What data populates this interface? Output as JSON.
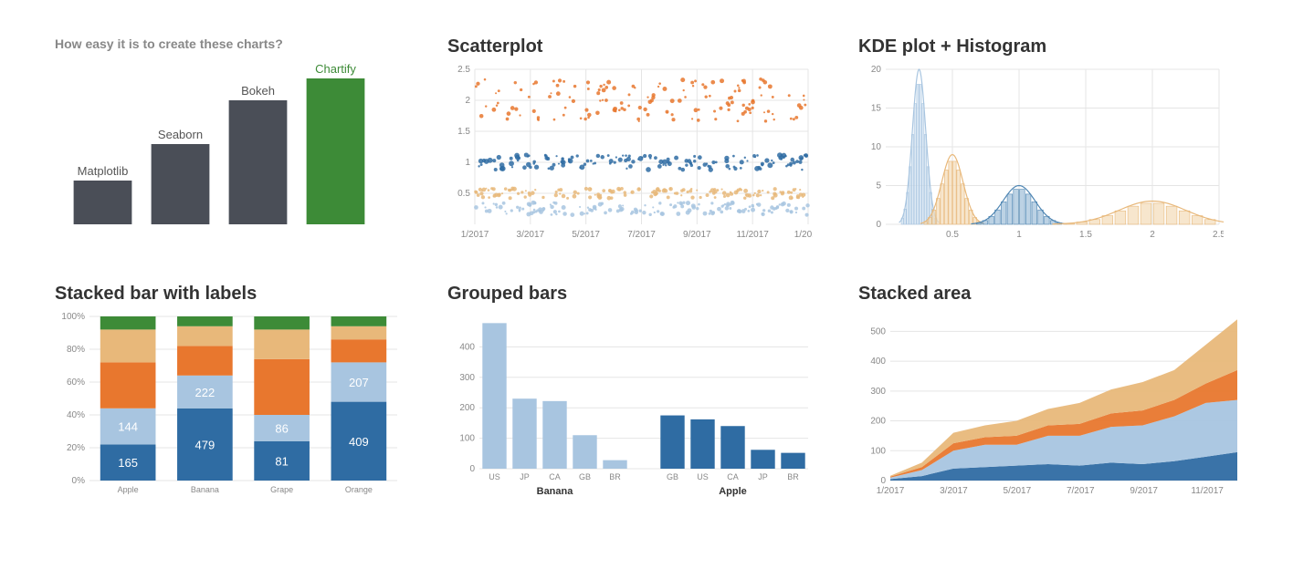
{
  "ease_chart": {
    "title": "How easy it is to create these charts?",
    "title_fontsize": 14,
    "title_color": "#888888",
    "type": "bar",
    "bars": [
      {
        "label": "Matplotlib",
        "value": 30,
        "color": "#4a4e57",
        "label_color": "#555555"
      },
      {
        "label": "Seaborn",
        "value": 55,
        "color": "#4a4e57",
        "label_color": "#555555"
      },
      {
        "label": "Bokeh",
        "value": 85,
        "color": "#4a4e57",
        "label_color": "#555555"
      },
      {
        "label": "Chartify",
        "value": 100,
        "color": "#3d8b37",
        "label_color": "#3d8b37"
      }
    ],
    "bar_width": 0.75,
    "ymax": 100
  },
  "scatter": {
    "title": "Scatterplot",
    "title_fontsize": 20,
    "type": "scatter",
    "xlim": [
      "1/2017",
      "1/2018"
    ],
    "xticks": [
      "1/2017",
      "3/2017",
      "5/2017",
      "7/2017",
      "9/2017",
      "11/2017",
      "1/2018"
    ],
    "ylim": [
      0,
      2.5
    ],
    "yticks": [
      0.5,
      1,
      1.5,
      2,
      2.5
    ],
    "series": [
      {
        "name": "orange-high",
        "color": "#e8772e",
        "y_center": 2.0,
        "y_spread": 0.35,
        "size_min": 2,
        "size_max": 5
      },
      {
        "name": "blue-mid",
        "color": "#2f6ca3",
        "y_center": 1.0,
        "y_spread": 0.12,
        "size_min": 2,
        "size_max": 6
      },
      {
        "name": "tan-low",
        "color": "#e8b87a",
        "y_center": 0.5,
        "y_spread": 0.08,
        "size_min": 2,
        "size_max": 5
      },
      {
        "name": "lightblue-low",
        "color": "#a8c5e0",
        "y_center": 0.25,
        "y_spread": 0.1,
        "size_min": 2,
        "size_max": 5
      }
    ],
    "points_per_series": 150,
    "grid_color": "#e5e5e5",
    "background": "#ffffff"
  },
  "kde": {
    "title": "KDE plot + Histogram",
    "title_fontsize": 20,
    "type": "kde+hist",
    "xlim": [
      0,
      2.5
    ],
    "xticks": [
      0.5,
      1,
      1.5,
      2,
      2.5
    ],
    "ylim": [
      0,
      20
    ],
    "yticks": [
      0,
      5,
      10,
      15,
      20
    ],
    "distributions": [
      {
        "color_line": "#a8c5e0",
        "color_fill": "#cfe0ef",
        "mean": 0.25,
        "std": 0.05,
        "peak": 20
      },
      {
        "color_line": "#e8b87a",
        "color_fill": "#f4dcb8",
        "mean": 0.5,
        "std": 0.08,
        "peak": 9
      },
      {
        "color_line": "#4f86b3",
        "color_fill": "#9fbfd9",
        "mean": 1.0,
        "std": 0.12,
        "peak": 5
      },
      {
        "color_line": "#e8b87a",
        "color_fill": "#f4dcb8",
        "mean": 2.0,
        "std": 0.25,
        "peak": 3
      }
    ],
    "grid_color": "#e5e5e5"
  },
  "stacked_bar": {
    "title": "Stacked bar with labels",
    "title_fontsize": 20,
    "type": "stacked-bar-100",
    "categories": [
      "Apple",
      "Banana",
      "Grape",
      "Orange"
    ],
    "yticks": [
      0,
      20,
      40,
      60,
      80,
      100
    ],
    "ytick_suffix": "%",
    "segments_bottom_to_top": [
      "dark_blue",
      "light_blue",
      "orange",
      "tan",
      "green"
    ],
    "colors": {
      "dark_blue": "#2f6ca3",
      "light_blue": "#a8c5e0",
      "orange": "#e8772e",
      "tan": "#e8b87a",
      "green": "#3d8b37"
    },
    "data_pct": {
      "Apple": {
        "dark_blue": 22,
        "light_blue": 22,
        "orange": 28,
        "tan": 20,
        "green": 8
      },
      "Banana": {
        "dark_blue": 44,
        "light_blue": 20,
        "orange": 18,
        "tan": 12,
        "green": 6
      },
      "Grape": {
        "dark_blue": 24,
        "light_blue": 16,
        "orange": 34,
        "tan": 18,
        "green": 8
      },
      "Orange": {
        "dark_blue": 48,
        "light_blue": 24,
        "orange": 14,
        "tan": 8,
        "green": 6
      }
    },
    "value_labels": {
      "Apple": {
        "dark_blue": "165",
        "light_blue": "144"
      },
      "Banana": {
        "dark_blue": "479",
        "light_blue": "222"
      },
      "Grape": {
        "dark_blue": "81",
        "light_blue": "86"
      },
      "Orange": {
        "dark_blue": "409",
        "light_blue": "207"
      }
    },
    "grid_color": "#e5e5e5"
  },
  "grouped_bars": {
    "title": "Grouped bars",
    "title_fontsize": 20,
    "type": "grouped-bar",
    "groups": [
      {
        "label": "Banana",
        "color": "#a8c5e0",
        "bars": [
          {
            "label": "US",
            "value": 478
          },
          {
            "label": "JP",
            "value": 230
          },
          {
            "label": "CA",
            "value": 222
          },
          {
            "label": "GB",
            "value": 110
          },
          {
            "label": "BR",
            "value": 28
          }
        ]
      },
      {
        "label": "Apple",
        "color": "#2f6ca3",
        "bars": [
          {
            "label": "GB",
            "value": 175
          },
          {
            "label": "US",
            "value": 162
          },
          {
            "label": "CA",
            "value": 140
          },
          {
            "label": "JP",
            "value": 62
          },
          {
            "label": "BR",
            "value": 52
          }
        ]
      }
    ],
    "ylim": [
      0,
      500
    ],
    "yticks": [
      0,
      100,
      200,
      300,
      400
    ],
    "grid_color": "#e5e5e5"
  },
  "stacked_area": {
    "title": "Stacked area",
    "title_fontsize": 20,
    "type": "stacked-area",
    "xticks": [
      "1/2017",
      "3/2017",
      "5/2017",
      "7/2017",
      "9/2017",
      "11/2017"
    ],
    "ylim": [
      0,
      550
    ],
    "yticks": [
      0,
      100,
      200,
      300,
      400,
      500
    ],
    "n_points": 12,
    "layers_bottom_to_top": [
      {
        "name": "dark_blue",
        "fill": "#2f6ca3",
        "values": [
          5,
          15,
          40,
          45,
          50,
          55,
          50,
          60,
          55,
          65,
          80,
          95
        ]
      },
      {
        "name": "light_blue",
        "fill": "#a8c5e0",
        "values": [
          5,
          20,
          60,
          75,
          70,
          95,
          100,
          120,
          130,
          150,
          180,
          175
        ]
      },
      {
        "name": "orange",
        "fill": "#e8772e",
        "values": [
          3,
          10,
          25,
          25,
          30,
          35,
          40,
          45,
          50,
          55,
          65,
          100
        ]
      },
      {
        "name": "tan",
        "fill": "#e8b87a",
        "values": [
          3,
          15,
          35,
          40,
          50,
          55,
          70,
          80,
          95,
          100,
          130,
          170
        ]
      }
    ],
    "grid_color": "#e5e5e5"
  }
}
